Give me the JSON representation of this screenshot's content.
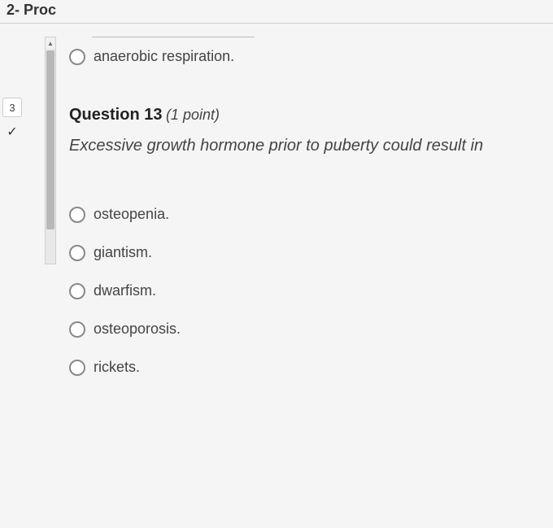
{
  "header": {
    "fragment": "2- Proc"
  },
  "sidebar": {
    "nav_number": "3",
    "check": "✓"
  },
  "previous_question": {
    "last_option": "anaerobic respiration."
  },
  "question": {
    "number_label": "Question 13",
    "points_label": "(1 point)",
    "prompt": "Excessive growth hormone prior to puberty could result in",
    "options": [
      {
        "label": "osteopenia."
      },
      {
        "label": "giantism."
      },
      {
        "label": "dwarfism."
      },
      {
        "label": "osteoporosis."
      },
      {
        "label": "rickets."
      }
    ]
  },
  "colors": {
    "background": "#f5f5f5",
    "text_primary": "#222",
    "text_body": "#444",
    "radio_border": "#888",
    "divider": "#ccc"
  }
}
